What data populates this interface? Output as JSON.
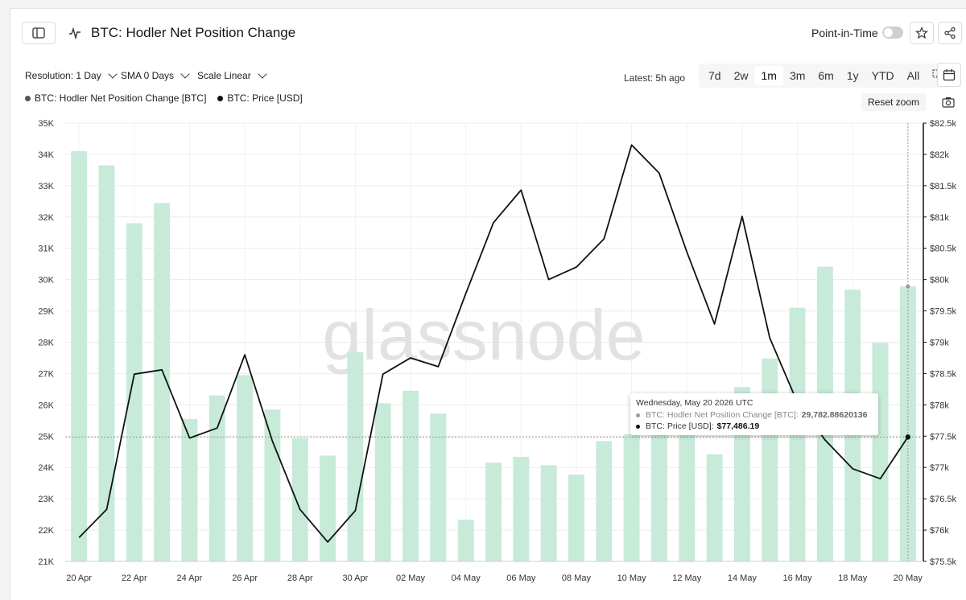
{
  "header": {
    "title": "BTC: Hodler Net Position Change",
    "point_in_time_label": "Point-in-Time"
  },
  "controls": {
    "resolution_label": "Resolution: 1 Day",
    "sma_label": "SMA 0 Days",
    "scale_label": "Scale Linear",
    "latest_label": "Latest: 5h ago",
    "ranges": [
      "7d",
      "2w",
      "1m",
      "3m",
      "6m",
      "1y",
      "YTD",
      "All"
    ],
    "active_range": "1m",
    "reset_zoom_label": "Reset zoom"
  },
  "colors": {
    "bar": "#c7ead9",
    "line": "#111111",
    "accent_gray": "#7a7a7a"
  },
  "watermark": "glassnode",
  "tooltip": {
    "date": "Wednesday, May 20 2026 UTC",
    "series1_label": "BTC: Hodler Net Position Change [BTC]:",
    "series1_value": "29,782.88620136",
    "series2_label": "BTC: Price [USD]:",
    "series2_value": "$77,486.19"
  },
  "chart_data": {
    "type": "bar+line",
    "x": [
      "20 Apr",
      "21 Apr",
      "22 Apr",
      "23 Apr",
      "24 Apr",
      "25 Apr",
      "26 Apr",
      "27 Apr",
      "28 Apr",
      "29 Apr",
      "30 Apr",
      "01 May",
      "02 May",
      "03 May",
      "04 May",
      "05 May",
      "06 May",
      "07 May",
      "08 May",
      "09 May",
      "10 May",
      "11 May",
      "12 May",
      "13 May",
      "14 May",
      "15 May",
      "16 May",
      "17 May",
      "18 May",
      "19 May",
      "20 May"
    ],
    "x_tick_labels": [
      "20 Apr",
      "22 Apr",
      "24 Apr",
      "26 Apr",
      "28 Apr",
      "30 Apr",
      "02 May",
      "04 May",
      "06 May",
      "08 May",
      "10 May",
      "12 May",
      "14 May",
      "16 May",
      "18 May",
      "20 May"
    ],
    "series": [
      {
        "name": "BTC: Hodler Net Position Change [BTC]",
        "type": "bar",
        "axis": "left",
        "values": [
          34100,
          33650,
          31800,
          32450,
          25550,
          26300,
          26950,
          25850,
          24930,
          24380,
          27680,
          26050,
          26450,
          25720,
          22330,
          24150,
          24340,
          24070,
          23770,
          24840,
          25060,
          25200,
          25400,
          24420,
          26570,
          27480,
          29100,
          30410,
          29680,
          27980,
          29783
        ]
      },
      {
        "name": "BTC: Price [USD]",
        "type": "line",
        "axis": "right",
        "values": [
          75880,
          76330,
          78490,
          78560,
          77470,
          77630,
          78800,
          77420,
          76330,
          75810,
          76310,
          78490,
          78750,
          78610,
          79780,
          80910,
          81430,
          80000,
          80200,
          80650,
          82150,
          81700,
          80440,
          79290,
          81010,
          79070,
          78040,
          77440,
          76980,
          76820,
          77486
        ]
      }
    ],
    "yleft_ticks": [
      "35K",
      "34K",
      "33K",
      "32K",
      "31K",
      "30K",
      "29K",
      "28K",
      "27K",
      "26K",
      "25K",
      "24K",
      "23K",
      "22K",
      "21K"
    ],
    "yright_ticks": [
      "$82.5k",
      "$82k",
      "$81.5k",
      "$81k",
      "$80.5k",
      "$80k",
      "$79.5k",
      "$79k",
      "$78.5k",
      "$78k",
      "$77.5k",
      "$77k",
      "$76.5k",
      "$76k",
      "$75.5k"
    ],
    "yleft_range": [
      21000,
      35000
    ],
    "yright_range": [
      75500,
      82500
    ],
    "grid": true,
    "legend_position": "top-left"
  }
}
